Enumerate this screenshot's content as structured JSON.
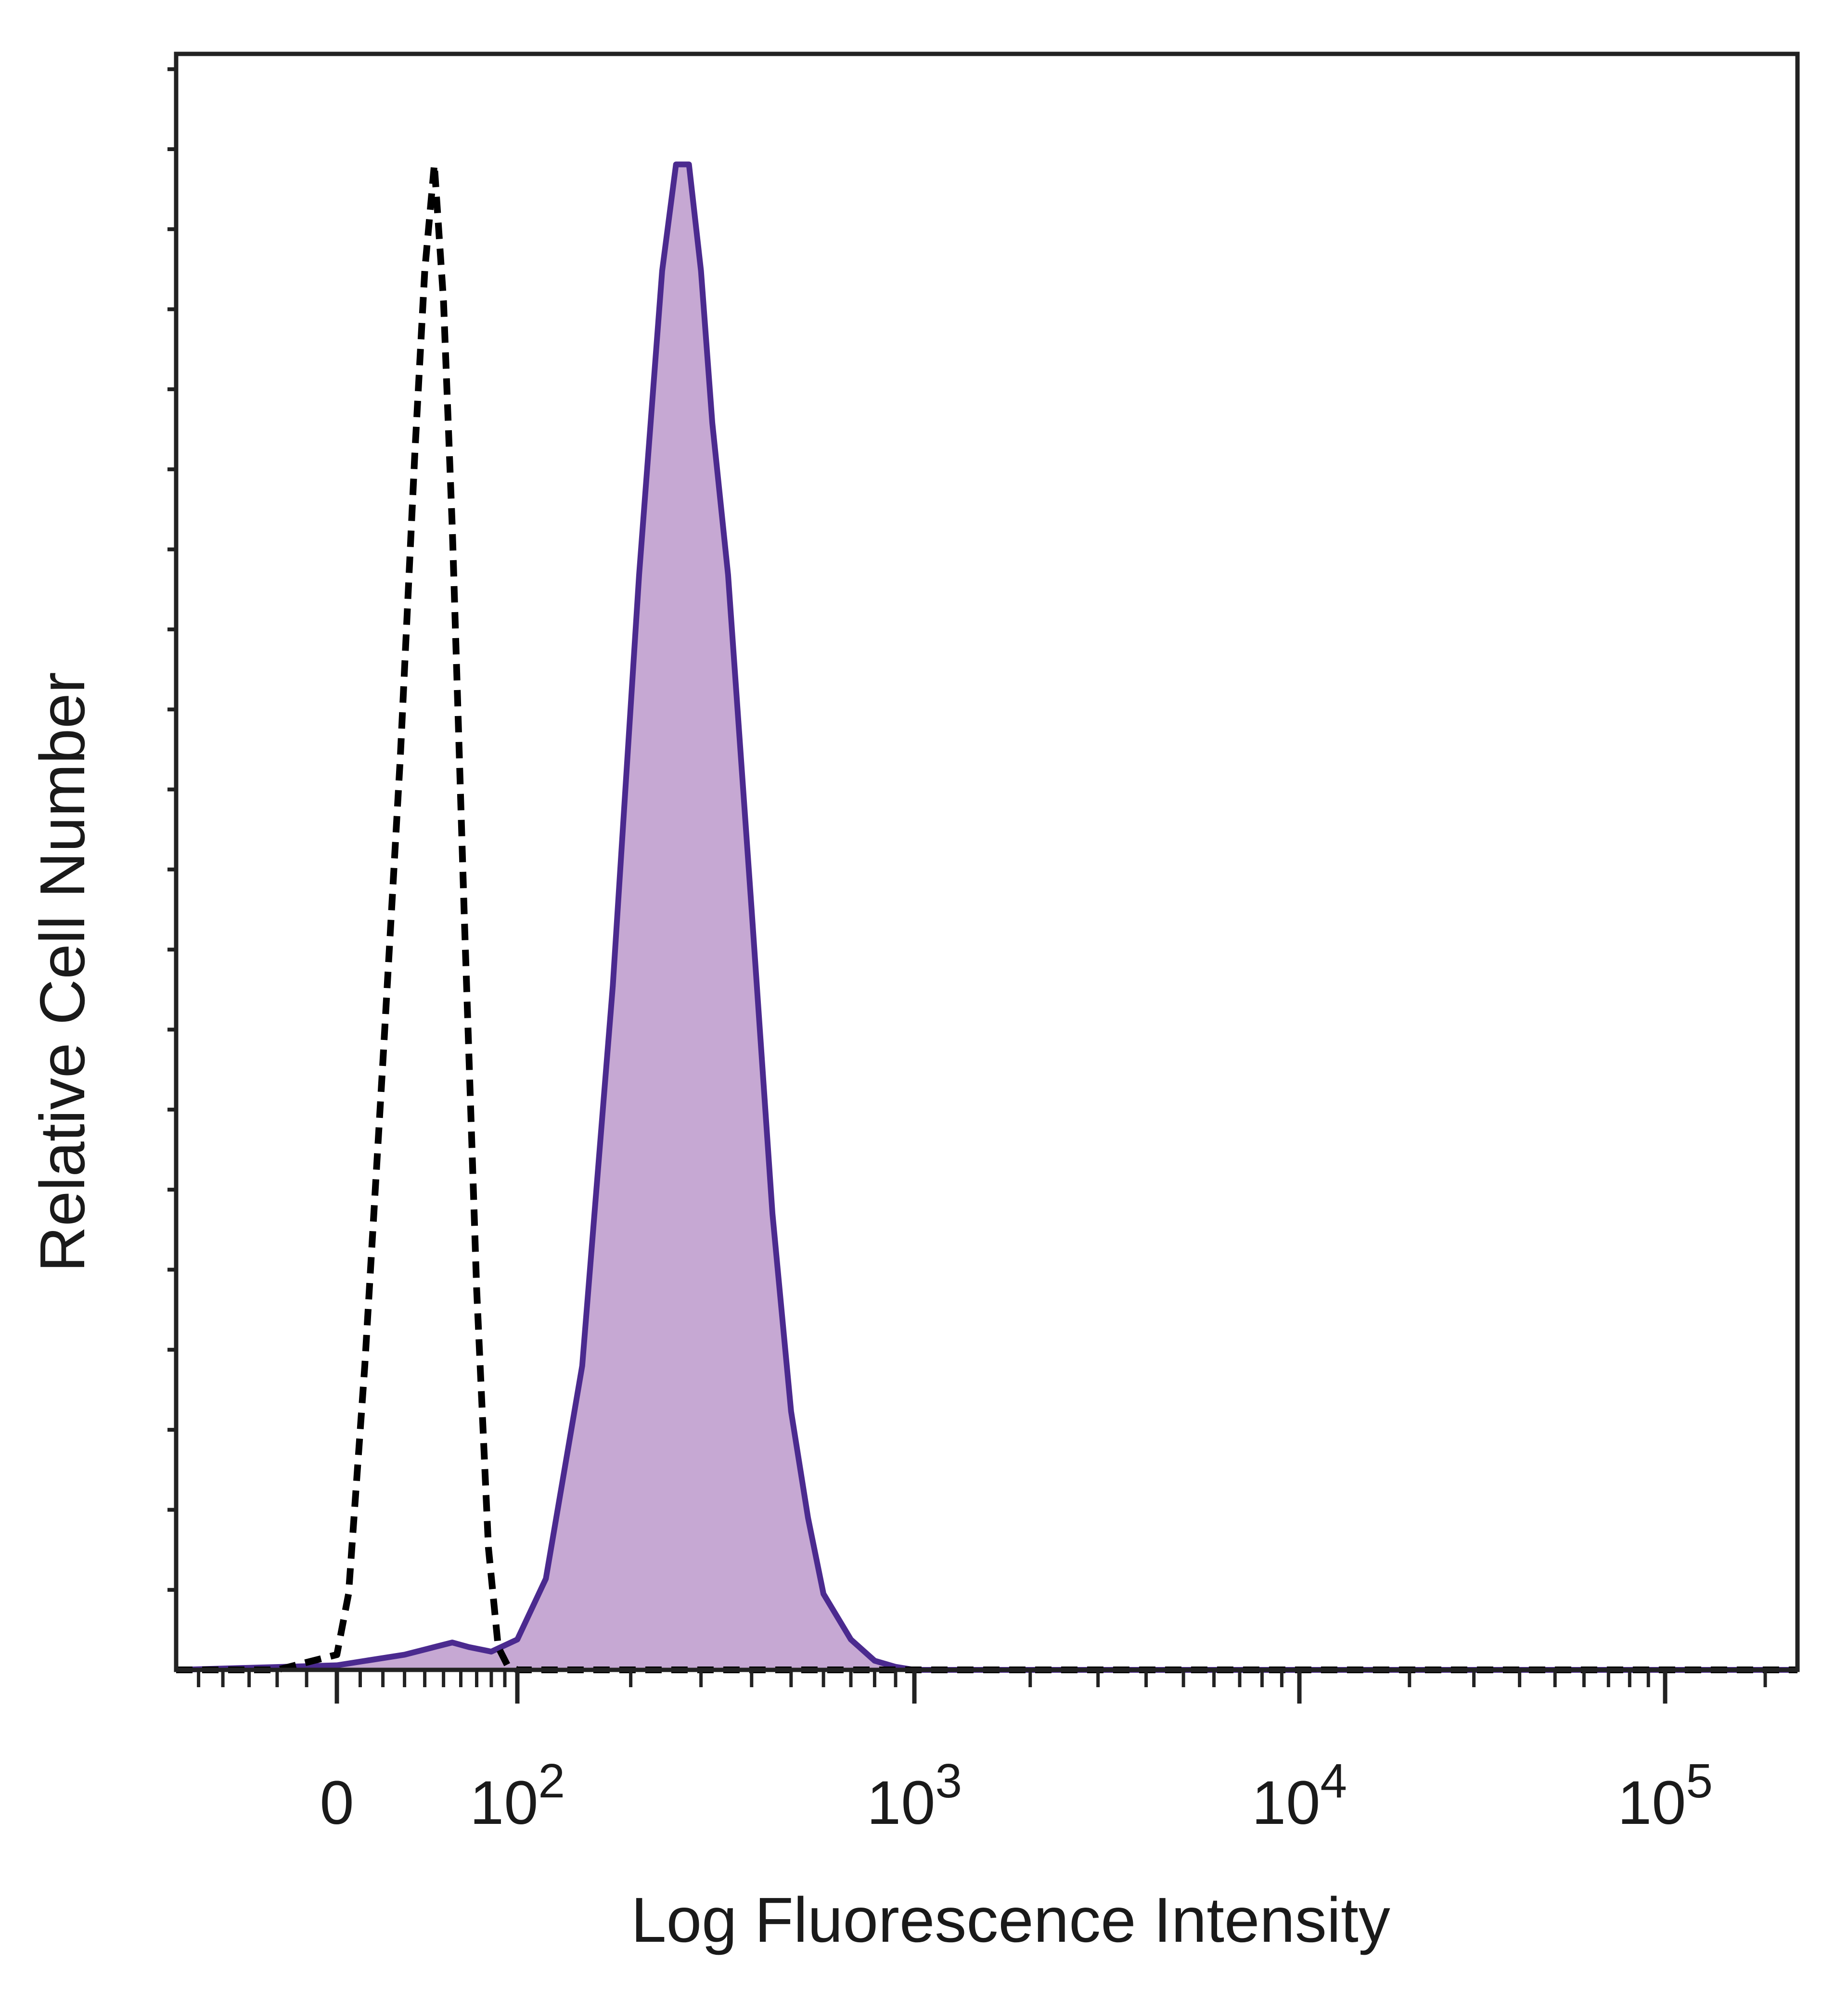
{
  "chart_data": {
    "type": "area",
    "xlabel": "Log Fluorescence Intensity",
    "ylabel": "Relative Cell Number",
    "x_scale": "biexponential",
    "xlim": [
      -60,
      250000
    ],
    "ylim": [
      0,
      100
    ],
    "x_ticks": [
      {
        "value": 0,
        "base": "0",
        "exp": ""
      },
      {
        "value": 100,
        "base": "10",
        "exp": "2"
      },
      {
        "value": 1000,
        "base": "10",
        "exp": "3"
      },
      {
        "value": 10000,
        "base": "10",
        "exp": "4"
      },
      {
        "value": 100000,
        "base": "10",
        "exp": "5"
      }
    ],
    "series": [
      {
        "style": "dashed-black-outline",
        "color": "#000000",
        "x": [
          -60,
          -20,
          0,
          5,
          12,
          20,
          28,
          35,
          40,
          45,
          50,
          55,
          62,
          70,
          78,
          85,
          92,
          100,
          150,
          1000,
          10000,
          250000
        ],
        "y": [
          0,
          0,
          1,
          5,
          20,
          40,
          60,
          80,
          92,
          99,
          90,
          75,
          50,
          25,
          8,
          1.5,
          0.3,
          0,
          0,
          0,
          0,
          0
        ]
      },
      {
        "style": "filled-purple",
        "color": "#4b2a8f",
        "fill": "#c6a8d3",
        "x": [
          -60,
          0,
          30,
          45,
          55,
          65,
          80,
          100,
          120,
          150,
          180,
          210,
          240,
          260,
          280,
          300,
          320,
          350,
          400,
          450,
          500,
          550,
          600,
          700,
          800,
          900,
          1000,
          1500,
          10000,
          250000
        ],
        "y": [
          0,
          0.3,
          1,
          1.5,
          1.8,
          1.5,
          1.2,
          2,
          6,
          20,
          45,
          72,
          92,
          99,
          99,
          92,
          82,
          72,
          50,
          30,
          17,
          10,
          5,
          2,
          0.6,
          0.2,
          0,
          0,
          0,
          0
        ]
      }
    ]
  }
}
